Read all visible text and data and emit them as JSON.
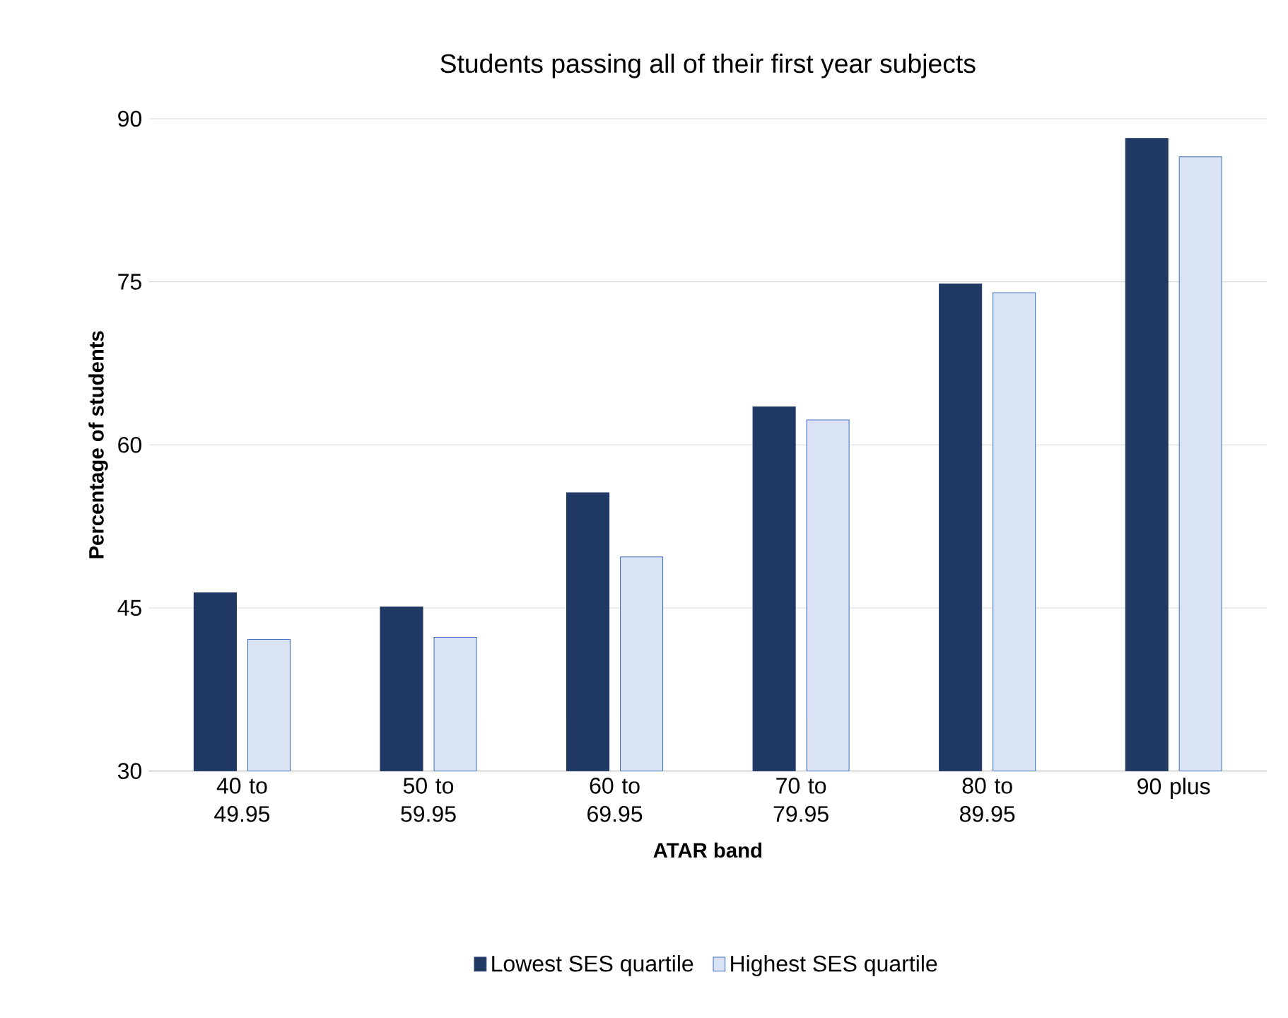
{
  "chart_data": {
    "type": "bar",
    "title": "Students passing all of their first year subjects",
    "xlabel": "ATAR band",
    "ylabel": "Percentage of students",
    "categories": [
      "40 to 49.95",
      "50 to 59.95",
      "60 to 69.95",
      "70 to 79.95",
      "80 to 89.95",
      "90 plus"
    ],
    "series": [
      {
        "name": "Lowest SES quartile",
        "color": "#203864",
        "values": [
          46.4,
          45.1,
          55.6,
          63.5,
          74.8,
          88.2
        ]
      },
      {
        "name": "Highest SES quartile",
        "color": "#dae3f3",
        "values": [
          42.1,
          42.3,
          49.7,
          62.3,
          74.0,
          86.5
        ]
      }
    ],
    "ylim": [
      30,
      90
    ],
    "yticks": [
      30,
      45,
      60,
      75,
      90
    ],
    "grid": "y",
    "legend": "bottom"
  }
}
